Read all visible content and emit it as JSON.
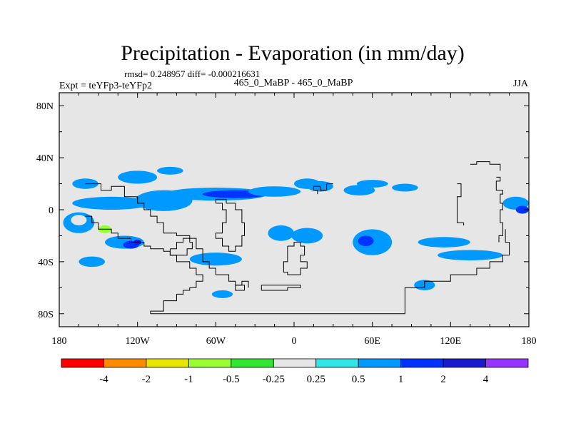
{
  "chart_data": {
    "type": "heatmap",
    "title": "Precipitation - Evaporation (in mm/day)",
    "stats_line": "rmsd= 0.248957 diff= -0.000216631",
    "left_label": "Expt = teYFp3-teYFp2",
    "center_label": "465_0_MaBP - 465_0_MaBP",
    "right_label": "JJA",
    "xlim": [
      -180,
      180
    ],
    "ylim": [
      -90,
      90
    ],
    "x_ticks": [
      {
        "value": -180,
        "label": "180"
      },
      {
        "value": -120,
        "label": "120W"
      },
      {
        "value": -60,
        "label": "60W"
      },
      {
        "value": 0,
        "label": "0"
      },
      {
        "value": 60,
        "label": "60E"
      },
      {
        "value": 120,
        "label": "120E"
      },
      {
        "value": 180,
        "label": "180"
      }
    ],
    "y_ticks": [
      {
        "value": 80,
        "label": "80N"
      },
      {
        "value": 40,
        "label": "40N"
      },
      {
        "value": 0,
        "label": "0"
      },
      {
        "value": -40,
        "label": "40S"
      },
      {
        "value": -80,
        "label": "80S"
      }
    ],
    "colorbar": {
      "colors": [
        "#ff0000",
        "#ff8c00",
        "#e6e600",
        "#99ff33",
        "#33e633",
        "#e6e6e6",
        "#33e6e6",
        "#0099ff",
        "#0033ff",
        "#1a1acc",
        "#9933ff"
      ],
      "labels": [
        "-4",
        "-2",
        "-1",
        "-0.5",
        "-0.25",
        "0.25",
        "0.5",
        "1",
        "2",
        "4"
      ]
    },
    "background_color": "#e6e6e6",
    "anomaly_regions": [
      {
        "lon": -140,
        "lat": 5,
        "rlon": 30,
        "rlat": 5,
        "level": 0.5
      },
      {
        "lon": -100,
        "lat": 7,
        "rlon": 22,
        "rlat": 8,
        "level": 0.5
      },
      {
        "lon": -60,
        "lat": 12,
        "rlon": 40,
        "rlat": 5,
        "level": 0.5
      },
      {
        "lon": -45,
        "lat": 12,
        "rlon": 25,
        "rlat": 3,
        "level": 1
      },
      {
        "lon": -15,
        "lat": 14,
        "rlon": 20,
        "rlat": 4,
        "level": 0.5
      },
      {
        "lon": -120,
        "lat": 25,
        "rlon": 15,
        "rlat": 5,
        "level": 0.5
      },
      {
        "lon": -95,
        "lat": 30,
        "rlon": 10,
        "rlat": 3,
        "level": 0.5
      },
      {
        "lon": -160,
        "lat": 20,
        "rlon": 10,
        "rlat": 4,
        "level": 0.5
      },
      {
        "lon": 10,
        "lat": 20,
        "rlon": 10,
        "rlat": 4,
        "level": 0.5
      },
      {
        "lon": 20,
        "lat": 18,
        "rlon": 10,
        "rlat": 4,
        "level": 0.5
      },
      {
        "lon": 45,
        "lat": 10,
        "rlon": 12,
        "rlat": 4,
        "level": -0.25
      },
      {
        "lon": 50,
        "lat": 15,
        "rlon": 12,
        "rlat": 4,
        "level": 0.5
      },
      {
        "lon": 60,
        "lat": 20,
        "rlon": 12,
        "rlat": 3,
        "level": 0.5
      },
      {
        "lon": 85,
        "lat": 17,
        "rlon": 10,
        "rlat": 3,
        "level": 0.5
      },
      {
        "lon": -165,
        "lat": -10,
        "rlon": 12,
        "rlat": 8,
        "level": 0.5
      },
      {
        "lon": -165,
        "lat": -8,
        "rlon": 6,
        "rlat": 4,
        "level": -0.25
      },
      {
        "lon": -145,
        "lat": -15,
        "rlon": 5,
        "rlat": 3,
        "level": -1
      },
      {
        "lon": -130,
        "lat": -25,
        "rlon": 15,
        "rlat": 5,
        "level": 0.5
      },
      {
        "lon": -125,
        "lat": -27,
        "rlon": 6,
        "rlat": 3,
        "level": 1
      },
      {
        "lon": -120,
        "lat": -25,
        "rlon": 3,
        "rlat": 2,
        "level": 2
      },
      {
        "lon": -90,
        "lat": -30,
        "rlon": 15,
        "rlat": 10,
        "level": -0.25
      },
      {
        "lon": -70,
        "lat": -25,
        "rlon": 10,
        "rlat": 12,
        "level": -0.25
      },
      {
        "lon": -50,
        "lat": -8,
        "rlon": 15,
        "rlat": 5,
        "level": -0.25
      },
      {
        "lon": -30,
        "lat": -12,
        "rlon": 15,
        "rlat": 6,
        "level": -0.25
      },
      {
        "lon": -10,
        "lat": -18,
        "rlon": 10,
        "rlat": 6,
        "level": 0.5
      },
      {
        "lon": 10,
        "lat": -20,
        "rlon": 12,
        "rlat": 6,
        "level": 0.5
      },
      {
        "lon": 5,
        "lat": -45,
        "rlon": 15,
        "rlat": 5,
        "level": -0.25
      },
      {
        "lon": -60,
        "lat": -38,
        "rlon": 20,
        "rlat": 5,
        "level": 0.5
      },
      {
        "lon": -155,
        "lat": -40,
        "rlon": 10,
        "rlat": 4,
        "level": 0.5
      },
      {
        "lon": 40,
        "lat": -28,
        "rlon": 15,
        "rlat": 8,
        "level": -0.25
      },
      {
        "lon": 60,
        "lat": -25,
        "rlon": 15,
        "rlat": 10,
        "level": 0.5
      },
      {
        "lon": 55,
        "lat": -24,
        "rlon": 6,
        "rlat": 4,
        "level": 1
      },
      {
        "lon": 100,
        "lat": -20,
        "rlon": 25,
        "rlat": 6,
        "level": -0.25
      },
      {
        "lon": 115,
        "lat": -25,
        "rlon": 20,
        "rlat": 4,
        "level": 0.5
      },
      {
        "lon": 90,
        "lat": -40,
        "rlon": 20,
        "rlat": 4,
        "level": -0.25
      },
      {
        "lon": 120,
        "lat": -8,
        "rlon": 12,
        "rlat": 6,
        "level": -0.25
      },
      {
        "lon": 160,
        "lat": -5,
        "rlon": 20,
        "rlat": 8,
        "level": -0.25
      },
      {
        "lon": 135,
        "lat": -35,
        "rlon": 25,
        "rlat": 4,
        "level": 0.5
      },
      {
        "lon": 140,
        "lat": -45,
        "rlon": 8,
        "rlat": 4,
        "level": -0.25
      },
      {
        "lon": 100,
        "lat": -58,
        "rlon": 8,
        "rlat": 4,
        "level": 0.5
      },
      {
        "lon": -45,
        "lat": -60,
        "rlon": 8,
        "rlat": 3,
        "level": -0.25
      },
      {
        "lon": -20,
        "lat": -62,
        "rlon": 10,
        "rlat": 3,
        "level": -0.25
      },
      {
        "lon": 150,
        "lat": 10,
        "rlon": 15,
        "rlat": 6,
        "level": -0.25
      },
      {
        "lon": 170,
        "lat": 5,
        "rlon": 10,
        "rlat": 5,
        "level": 0.5
      },
      {
        "lon": 175,
        "lat": 0,
        "rlon": 5,
        "rlat": 3,
        "level": 1
      },
      {
        "lon": -55,
        "lat": -65,
        "rlon": 8,
        "rlat": 3,
        "level": 0.5
      }
    ],
    "coastlines": [
      [
        [
          -160,
          20
        ],
        [
          -150,
          20
        ],
        [
          -148,
          15
        ],
        [
          -140,
          18
        ],
        [
          -130,
          10
        ],
        [
          -120,
          5
        ],
        [
          -115,
          0
        ],
        [
          -110,
          -5
        ],
        [
          -105,
          -10
        ],
        [
          -100,
          -18
        ],
        [
          -90,
          -20
        ],
        [
          -80,
          -22
        ],
        [
          -75,
          -30
        ],
        [
          -70,
          -40
        ],
        [
          -65,
          -45
        ],
        [
          -60,
          -50
        ],
        [
          -50,
          -55
        ],
        [
          -45,
          -58
        ],
        [
          -40,
          -55
        ],
        [
          -35,
          -60
        ]
      ],
      [
        [
          -160,
          -5
        ],
        [
          -155,
          -10
        ],
        [
          -150,
          -15
        ],
        [
          -140,
          -18
        ],
        [
          -135,
          -22
        ],
        [
          -125,
          -25
        ],
        [
          -115,
          -28
        ],
        [
          -110,
          -30
        ],
        [
          -100,
          -32
        ],
        [
          -95,
          -35
        ],
        [
          -90,
          -40
        ],
        [
          -80,
          -45
        ],
        [
          -75,
          -50
        ],
        [
          -70,
          -55
        ],
        [
          -75,
          -60
        ],
        [
          -80,
          -62
        ],
        [
          -85,
          -65
        ],
        [
          -90,
          -70
        ],
        [
          -100,
          -78
        ],
        [
          -110,
          -80
        ]
      ],
      [
        [
          -110,
          -80
        ],
        [
          80,
          -80
        ],
        [
          85,
          -60
        ],
        [
          100,
          -55
        ],
        [
          120,
          -50
        ],
        [
          140,
          -45
        ],
        [
          150,
          -40
        ],
        [
          160,
          -35
        ],
        [
          165,
          -25
        ],
        [
          162,
          -15
        ]
      ],
      [
        [
          -95,
          -30
        ],
        [
          -90,
          -25
        ],
        [
          -85,
          -22
        ],
        [
          -80,
          -25
        ],
        [
          -78,
          -30
        ],
        [
          -82,
          -35
        ],
        [
          -88,
          -35
        ],
        [
          -95,
          -30
        ]
      ],
      [
        [
          -60,
          5
        ],
        [
          -55,
          0
        ],
        [
          -52,
          -10
        ],
        [
          -55,
          -18
        ],
        [
          -60,
          -22
        ],
        [
          -55,
          -28
        ],
        [
          -50,
          -32
        ],
        [
          -45,
          -28
        ],
        [
          -40,
          -20
        ],
        [
          -38,
          -10
        ],
        [
          -40,
          0
        ],
        [
          -45,
          5
        ],
        [
          -52,
          8
        ],
        [
          -60,
          5
        ]
      ],
      [
        [
          -5,
          -28
        ],
        [
          0,
          -25
        ],
        [
          5,
          -28
        ],
        [
          8,
          -35
        ],
        [
          5,
          -40
        ],
        [
          10,
          -45
        ],
        [
          5,
          -50
        ],
        [
          -5,
          -48
        ],
        [
          -8,
          -40
        ],
        [
          -5,
          -28
        ]
      ],
      [
        [
          -45,
          -58
        ],
        [
          -40,
          -58
        ],
        [
          -38,
          -62
        ],
        [
          -42,
          -62
        ],
        [
          -45,
          -58
        ]
      ],
      [
        [
          -25,
          -58
        ],
        [
          -5,
          -58
        ],
        [
          5,
          -60
        ],
        [
          -5,
          -62
        ],
        [
          -25,
          -62
        ],
        [
          -25,
          -58
        ]
      ],
      [
        [
          135,
          35
        ],
        [
          140,
          37
        ],
        [
          150,
          35
        ],
        [
          158,
          35
        ],
        [
          158,
          30
        ]
      ],
      [
        [
          125,
          20
        ],
        [
          128,
          18
        ],
        [
          128,
          10
        ],
        [
          125,
          0
        ],
        [
          125,
          -10
        ],
        [
          130,
          -12
        ]
      ],
      [
        [
          155,
          25
        ],
        [
          158,
          22
        ],
        [
          155,
          15
        ],
        [
          160,
          12
        ],
        [
          158,
          5
        ],
        [
          160,
          0
        ],
        [
          158,
          -10
        ],
        [
          160,
          -20
        ],
        [
          157,
          -25
        ]
      ],
      [
        [
          30,
          20
        ],
        [
          25,
          15
        ],
        [
          20,
          18
        ],
        [
          15,
          15
        ],
        [
          18,
          12
        ]
      ]
    ]
  }
}
